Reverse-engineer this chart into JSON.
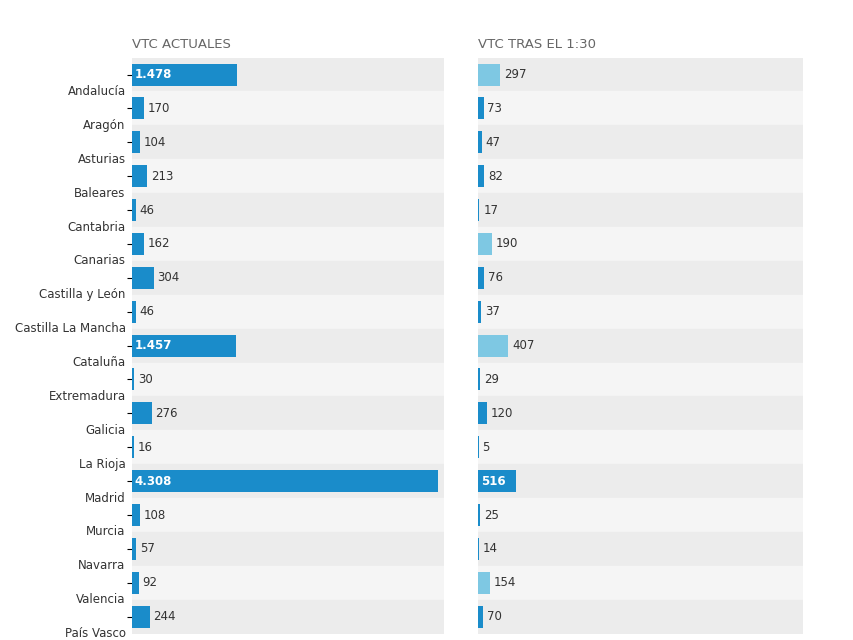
{
  "col1_header": "VTC ACTUALES",
  "col2_header": "VTC TRAS EL 1:30",
  "regions": [
    "Andalucía",
    "Aragón",
    "Asturias",
    "Baleares",
    "Cantabria",
    "Canarias",
    "Castilla y León",
    "Castilla La Mancha",
    "Cataluña",
    "Extremadura",
    "Galicia",
    "La Rioja",
    "Madrid",
    "Murcia",
    "Navarra",
    "Valencia",
    "País Vasco"
  ],
  "values_current": [
    1478,
    170,
    104,
    213,
    46,
    162,
    304,
    46,
    1457,
    30,
    276,
    16,
    4308,
    108,
    57,
    92,
    244
  ],
  "values_after": [
    297,
    73,
    47,
    82,
    17,
    190,
    76,
    37,
    407,
    29,
    120,
    5,
    516,
    25,
    14,
    154,
    70
  ],
  "labels_current": [
    "1.478",
    "170",
    "104",
    "213",
    "46",
    "162",
    "304",
    "46",
    "1.457",
    "30",
    "276",
    "16",
    "4.308",
    "108",
    "57",
    "92",
    "244"
  ],
  "labels_after": [
    "297",
    "73",
    "47",
    "82",
    "17",
    "190",
    "76",
    "37",
    "407",
    "29",
    "120",
    "5",
    "516",
    "25",
    "14",
    "154",
    "70"
  ],
  "dark_blue": "#1a8cca",
  "light_blue": "#7ec8e3",
  "row_bg_even": "#ececec",
  "row_bg_odd": "#f5f5f5",
  "text_dark": "#333333",
  "text_header": "#666666",
  "white": "#ffffff",
  "global_max": 4308,
  "label_fontsize": 8.5,
  "header_fontsize": 9.5,
  "bar_height": 0.65,
  "light_blue_regions_right": [
    "Andalucía",
    "Cataluña",
    "Canarias",
    "Valencia"
  ],
  "white_label_inside_left": [
    "Andalucía",
    "Cataluña",
    "Madrid"
  ],
  "white_label_inside_right": [
    "Madrid"
  ]
}
